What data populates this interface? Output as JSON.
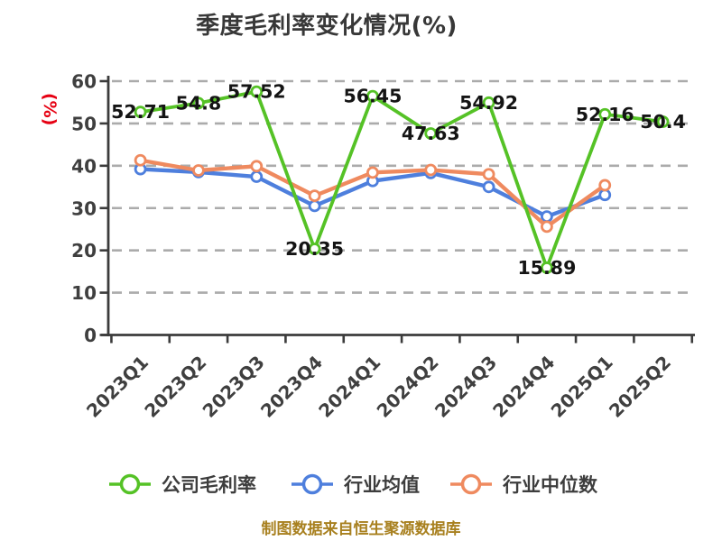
{
  "page": {
    "title": "季度毛利率变化情况(%)",
    "source_note": "制图数据来自恒生聚源数据库"
  },
  "chart_data": {
    "type": "line",
    "title": "季度毛利率变化情况(%)",
    "xlabel": "",
    "ylabel": "(%)",
    "ylim": [
      0,
      60
    ],
    "yticks": [
      0,
      10,
      20,
      30,
      40,
      50,
      60
    ],
    "grid": "horizontal-dashed",
    "legend_position": "bottom",
    "categories": [
      "2023Q1",
      "2023Q2",
      "2023Q3",
      "2023Q4",
      "2024Q1",
      "2024Q2",
      "2024Q3",
      "2024Q4",
      "2025Q1",
      "2025Q2"
    ],
    "series": [
      {
        "name": "公司毛利率",
        "color": "#55c226",
        "values": [
          52.71,
          54.8,
          57.52,
          20.35,
          56.45,
          47.63,
          54.92,
          15.89,
          52.16,
          50.4
        ],
        "point_labels": true
      },
      {
        "name": "行业均值",
        "color": "#4e7fdd",
        "values": [
          39.2,
          38.5,
          37.4,
          30.5,
          36.4,
          38.3,
          35.0,
          28.0,
          33.1,
          null
        ],
        "point_labels": false
      },
      {
        "name": "行业中位数",
        "color": "#ef8a5f",
        "values": [
          41.3,
          38.9,
          39.9,
          32.9,
          38.4,
          39.0,
          38.0,
          25.6,
          35.4,
          null
        ],
        "point_labels": false
      }
    ],
    "colors": {
      "grid": "#ababab",
      "axis": "#3b3b3b",
      "tick_label": "#3f3f3f",
      "data_label": "#141414",
      "title": "#383838",
      "ylabel_unit": "#e60012",
      "source_note": "#a8801f",
      "background": "#ffffff"
    }
  }
}
